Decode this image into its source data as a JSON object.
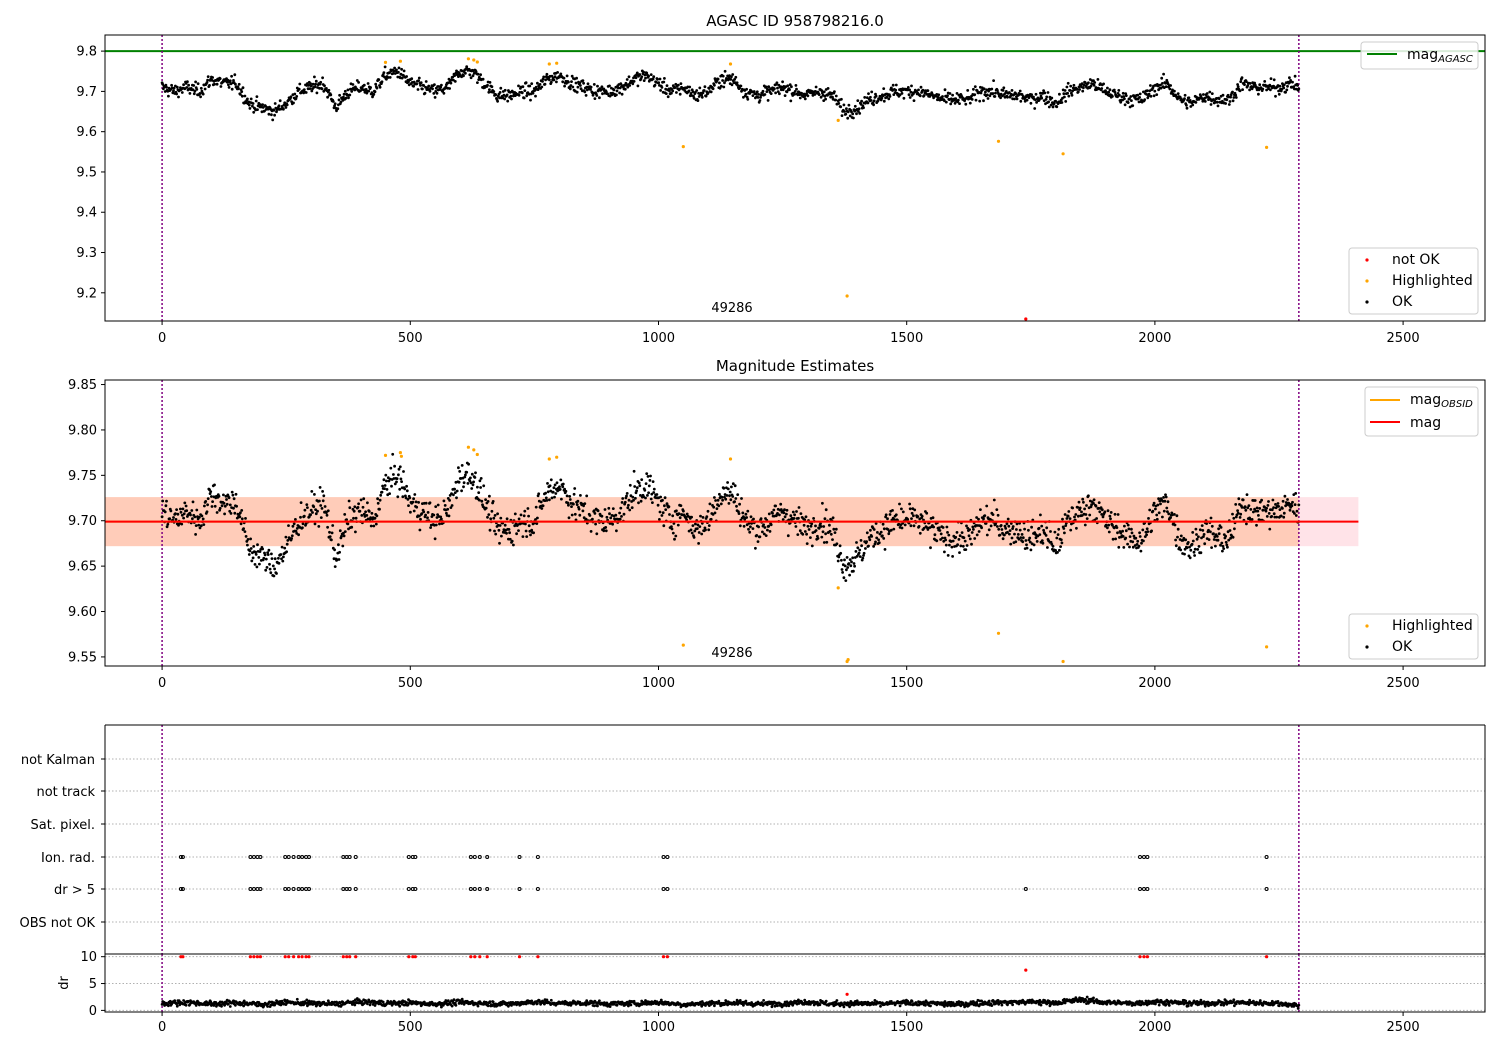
{
  "chart_data": [
    {
      "type": "scatter",
      "title": "AGASC ID 958798216.0",
      "xlabel": "",
      "ylabel": "",
      "xlim": [
        -115,
        2665
      ],
      "ylim": [
        9.13,
        9.84
      ],
      "xticks": [
        0,
        500,
        1000,
        1500,
        2000,
        2500
      ],
      "yticks": [
        9.2,
        9.3,
        9.4,
        9.5,
        9.6,
        9.7,
        9.8
      ],
      "ytick_labels": [
        "9.2",
        "9.3",
        "9.4",
        "9.5",
        "9.6",
        "9.7",
        "9.8"
      ],
      "annotation": {
        "text": "49286",
        "x": 1140,
        "y": 9.155
      },
      "vlines": [
        0,
        2290
      ],
      "hlines": [
        {
          "name": "mag_AGASC",
          "y": 9.8,
          "color": "#008000",
          "x": [
            -115,
            2665
          ]
        }
      ],
      "legend_upper": {
        "position": "upper right",
        "entries": [
          {
            "label_main": "mag",
            "label_sub": "AGASC",
            "color": "#008000",
            "kind": "line"
          }
        ]
      },
      "legend_lower": {
        "position": "lower right",
        "entries": [
          {
            "label": "not OK",
            "color": "#ff0000",
            "kind": "dot"
          },
          {
            "label": "Highlighted",
            "color": "#ffa500",
            "kind": "dot"
          },
          {
            "label": "OK",
            "color": "#000000",
            "kind": "dot"
          }
        ]
      },
      "series": [
        {
          "name": "OK",
          "color": "#000000",
          "mode": "dense",
          "x": [
            0,
            25,
            50,
            75,
            100,
            125,
            150,
            175,
            200,
            225,
            250,
            275,
            300,
            325,
            350,
            375,
            400,
            425,
            450,
            475,
            500,
            525,
            550,
            575,
            600,
            625,
            650,
            675,
            700,
            725,
            750,
            775,
            800,
            825,
            850,
            875,
            900,
            925,
            950,
            975,
            1000,
            1025,
            1050,
            1075,
            1100,
            1125,
            1150,
            1175,
            1200,
            1225,
            1250,
            1275,
            1300,
            1325,
            1350,
            1375,
            1400,
            1425,
            1450,
            1475,
            1500,
            1525,
            1550,
            1575,
            1600,
            1625,
            1650,
            1675,
            1700,
            1725,
            1750,
            1775,
            1800,
            1825,
            1850,
            1875,
            1900,
            1925,
            1950,
            1975,
            2000,
            2025,
            2050,
            2075,
            2100,
            2125,
            2150,
            2175,
            2200,
            2225,
            2250,
            2275,
            2290
          ],
          "y": [
            9.71,
            9.7,
            9.71,
            9.7,
            9.73,
            9.72,
            9.72,
            9.67,
            9.66,
            9.65,
            9.67,
            9.7,
            9.71,
            9.72,
            9.66,
            9.7,
            9.71,
            9.7,
            9.74,
            9.75,
            9.72,
            9.71,
            9.7,
            9.71,
            9.75,
            9.75,
            9.72,
            9.69,
            9.69,
            9.7,
            9.7,
            9.73,
            9.74,
            9.72,
            9.71,
            9.7,
            9.7,
            9.71,
            9.73,
            9.74,
            9.72,
            9.7,
            9.71,
            9.69,
            9.7,
            9.73,
            9.73,
            9.7,
            9.69,
            9.7,
            9.71,
            9.7,
            9.69,
            9.7,
            9.69,
            9.65,
            9.66,
            9.68,
            9.69,
            9.7,
            9.7,
            9.7,
            9.69,
            9.68,
            9.68,
            9.68,
            9.7,
            9.7,
            9.69,
            9.69,
            9.68,
            9.69,
            9.67,
            9.7,
            9.71,
            9.72,
            9.7,
            9.69,
            9.68,
            9.68,
            9.71,
            9.72,
            9.68,
            9.67,
            9.69,
            9.68,
            9.68,
            9.72,
            9.71,
            9.71,
            9.71,
            9.72,
            9.71
          ],
          "noise": 0.012
        },
        {
          "name": "Highlighted",
          "color": "#ffa500",
          "mode": "points",
          "x": [
            450,
            480,
            617,
            628,
            635,
            780,
            795,
            1050,
            1145,
            1362,
            1380,
            1685,
            1815,
            2225
          ],
          "y": [
            9.772,
            9.775,
            9.781,
            9.778,
            9.773,
            9.768,
            9.77,
            9.563,
            9.768,
            9.628,
            9.192,
            9.576,
            9.545,
            9.561
          ]
        },
        {
          "name": "not OK",
          "color": "#ff0000",
          "mode": "points",
          "x": [
            1740
          ],
          "y": [
            9.135
          ]
        }
      ]
    },
    {
      "type": "scatter",
      "title": "Magnitude Estimates",
      "xlabel": "",
      "ylabel": "",
      "xlim": [
        -115,
        2665
      ],
      "ylim": [
        9.54,
        9.855
      ],
      "xticks": [
        0,
        500,
        1000,
        1500,
        2000,
        2500
      ],
      "yticks": [
        9.55,
        9.6,
        9.65,
        9.7,
        9.75,
        9.8,
        9.85
      ],
      "ytick_labels": [
        "9.55",
        "9.60",
        "9.65",
        "9.70",
        "9.75",
        "9.80",
        "9.85"
      ],
      "annotation": {
        "text": "49286",
        "x": 1140,
        "y": 9.551
      },
      "vlines": [
        0,
        2290
      ],
      "bands": [
        {
          "name": "mag range",
          "x": [
            -115,
            2410
          ],
          "y": [
            9.672,
            9.726
          ],
          "color": "#ffc0cb",
          "opacity": 0.45
        },
        {
          "name": "mag_OBSID range",
          "x": [
            -115,
            2290
          ],
          "y": [
            9.672,
            9.726
          ],
          "color": "#ffa060",
          "opacity": 0.35
        }
      ],
      "hlines": [
        {
          "name": "mag_OBSID",
          "y": 9.699,
          "color": "#ffa500",
          "x": [
            -115,
            2290
          ]
        },
        {
          "name": "mag",
          "y": 9.699,
          "color": "#ff0000",
          "x": [
            -115,
            2410
          ]
        }
      ],
      "legend_upper": {
        "position": "upper right",
        "entries": [
          {
            "label_main": "mag",
            "label_sub": "OBSID",
            "color": "#ffa500",
            "kind": "line"
          },
          {
            "label_main": "mag",
            "label_sub": "",
            "color": "#ff0000",
            "kind": "line"
          }
        ]
      },
      "legend_lower": {
        "position": "lower right",
        "entries": [
          {
            "label": "Highlighted",
            "color": "#ffa500",
            "kind": "dot"
          },
          {
            "label": "OK",
            "color": "#000000",
            "kind": "dot"
          }
        ]
      },
      "series": [
        {
          "name": "OK",
          "color": "#000000",
          "mode": "dense",
          "x": [
            0,
            25,
            50,
            75,
            100,
            125,
            150,
            175,
            200,
            225,
            250,
            275,
            300,
            325,
            350,
            375,
            400,
            425,
            450,
            475,
            500,
            525,
            550,
            575,
            600,
            625,
            650,
            675,
            700,
            725,
            750,
            775,
            800,
            825,
            850,
            875,
            900,
            925,
            950,
            975,
            1000,
            1025,
            1050,
            1075,
            1100,
            1125,
            1150,
            1175,
            1200,
            1225,
            1250,
            1275,
            1300,
            1325,
            1350,
            1375,
            1400,
            1425,
            1450,
            1475,
            1500,
            1525,
            1550,
            1575,
            1600,
            1625,
            1650,
            1675,
            1700,
            1725,
            1750,
            1775,
            1800,
            1825,
            1850,
            1875,
            1900,
            1925,
            1950,
            1975,
            2000,
            2025,
            2050,
            2075,
            2100,
            2125,
            2150,
            2175,
            2200,
            2225,
            2250,
            2275,
            2290
          ],
          "y": [
            9.71,
            9.7,
            9.71,
            9.7,
            9.73,
            9.72,
            9.72,
            9.67,
            9.66,
            9.65,
            9.67,
            9.7,
            9.71,
            9.72,
            9.66,
            9.7,
            9.71,
            9.7,
            9.74,
            9.75,
            9.72,
            9.71,
            9.7,
            9.71,
            9.75,
            9.75,
            9.72,
            9.69,
            9.69,
            9.7,
            9.7,
            9.73,
            9.74,
            9.72,
            9.71,
            9.7,
            9.7,
            9.71,
            9.73,
            9.74,
            9.72,
            9.7,
            9.71,
            9.69,
            9.7,
            9.73,
            9.73,
            9.7,
            9.69,
            9.7,
            9.71,
            9.7,
            9.69,
            9.7,
            9.69,
            9.65,
            9.66,
            9.68,
            9.69,
            9.7,
            9.7,
            9.7,
            9.69,
            9.68,
            9.68,
            9.68,
            9.7,
            9.7,
            9.69,
            9.69,
            9.68,
            9.69,
            9.67,
            9.7,
            9.71,
            9.72,
            9.7,
            9.69,
            9.68,
            9.68,
            9.71,
            9.72,
            9.68,
            9.67,
            9.69,
            9.68,
            9.68,
            9.72,
            9.71,
            9.71,
            9.71,
            9.72,
            9.71
          ],
          "noise": 0.012
        },
        {
          "name": "Highlighted",
          "color": "#ffa500",
          "mode": "points",
          "x": [
            450,
            480,
            482,
            617,
            628,
            635,
            780,
            795,
            1050,
            1145,
            1362,
            1380,
            1382,
            1685,
            1815,
            2225
          ],
          "y": [
            9.772,
            9.775,
            9.771,
            9.781,
            9.778,
            9.773,
            9.768,
            9.77,
            9.563,
            9.768,
            9.626,
            9.545,
            9.547,
            9.576,
            9.545,
            9.561
          ]
        }
      ]
    },
    {
      "type": "scatter",
      "title": "",
      "xlabel": "",
      "ylabel": "",
      "xlim": [
        -115,
        2665
      ],
      "xticks": [
        0,
        500,
        1000,
        1500,
        2000,
        2500
      ],
      "vlines": [
        0,
        2290
      ],
      "categories": [
        "not Kalman",
        "not track",
        "Sat. pixel.",
        "Ion. rad.",
        "dr > 5",
        "OBS not OK"
      ],
      "flag_points": {
        "Ion. rad.": [
          38,
          42,
          178,
          185,
          192,
          198,
          248,
          255,
          265,
          275,
          282,
          290,
          296,
          365,
          372,
          378,
          390,
          497,
          505,
          510,
          622,
          630,
          640,
          655,
          720,
          757,
          1010,
          1018,
          1970,
          1978,
          1985,
          2225
        ],
        "dr > 5": [
          38,
          42,
          178,
          185,
          192,
          198,
          248,
          255,
          265,
          275,
          282,
          290,
          296,
          365,
          372,
          378,
          390,
          497,
          505,
          510,
          622,
          630,
          640,
          655,
          720,
          757,
          1010,
          1018,
          1740,
          1970,
          1978,
          1985,
          2225
        ]
      }
    },
    {
      "type": "scatter",
      "title": "",
      "xlabel": "",
      "ylabel": "dr",
      "xlim": [
        -115,
        2665
      ],
      "ylim": [
        -0.3,
        10.5
      ],
      "xticks": [
        0,
        500,
        1000,
        1500,
        2000,
        2500
      ],
      "yticks": [
        0,
        5,
        10
      ],
      "ytick_labels": [
        "0",
        "5",
        "10"
      ],
      "vlines": [
        0,
        2290
      ],
      "series": [
        {
          "name": "dr",
          "color": "#000000",
          "mode": "dense",
          "x": [
            0,
            50,
            100,
            150,
            200,
            250,
            300,
            350,
            400,
            450,
            500,
            550,
            600,
            650,
            700,
            750,
            800,
            850,
            900,
            950,
            1000,
            1050,
            1100,
            1150,
            1200,
            1250,
            1300,
            1350,
            1400,
            1450,
            1500,
            1550,
            1600,
            1650,
            1700,
            1750,
            1800,
            1850,
            1900,
            1950,
            2000,
            2050,
            2100,
            2150,
            2200,
            2250,
            2290
          ],
          "y": [
            1.3,
            1.5,
            1.2,
            1.4,
            1.1,
            1.5,
            1.3,
            1.2,
            1.6,
            1.3,
            1.4,
            1.2,
            1.5,
            1.3,
            1.2,
            1.6,
            1.3,
            1.4,
            1.2,
            1.3,
            1.5,
            1.1,
            1.3,
            1.4,
            1.2,
            1.3,
            1.6,
            1.2,
            1.3,
            1.2,
            1.4,
            1.3,
            1.1,
            1.4,
            1.5,
            1.6,
            1.4,
            2.0,
            1.5,
            1.3,
            1.6,
            1.4,
            1.3,
            1.5,
            1.4,
            1.3,
            0.9
          ],
          "noise": 0.35
        },
        {
          "name": "dr > 5",
          "color": "#ff0000",
          "mode": "points",
          "x": [
            38,
            42,
            178,
            185,
            192,
            198,
            248,
            255,
            265,
            275,
            282,
            290,
            296,
            365,
            372,
            378,
            390,
            497,
            505,
            510,
            622,
            630,
            640,
            655,
            720,
            757,
            1010,
            1018,
            1970,
            1978,
            1985,
            2225,
            1740,
            1380
          ],
          "y": [
            10,
            10,
            10,
            10,
            10,
            10,
            10,
            10,
            10,
            10,
            10,
            10,
            10,
            10,
            10,
            10,
            10,
            10,
            10,
            10,
            10,
            10,
            10,
            10,
            10,
            10,
            10,
            10,
            10,
            10,
            10,
            10,
            7.5,
            3.0
          ]
        }
      ]
    }
  ]
}
